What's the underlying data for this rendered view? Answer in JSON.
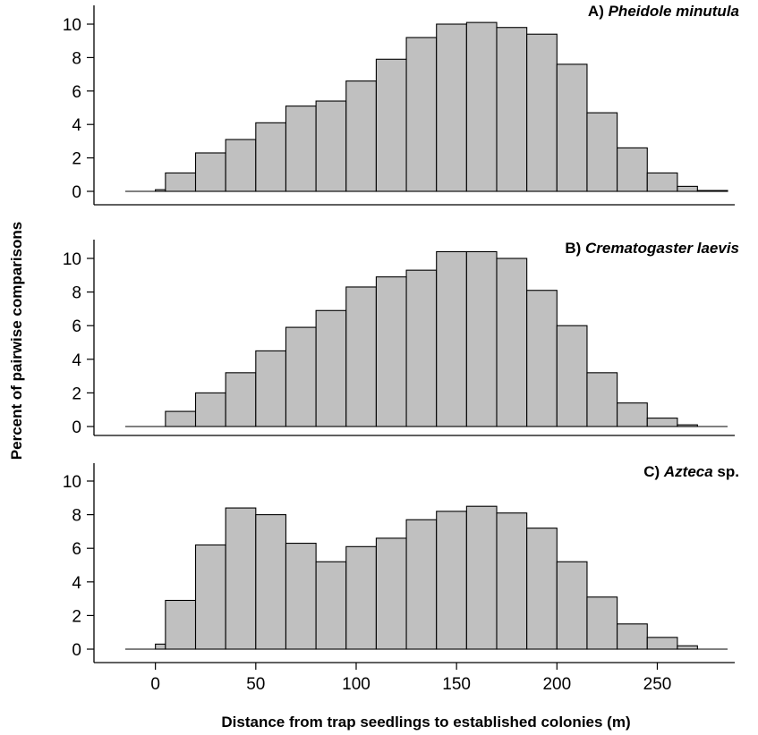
{
  "chart_data": {
    "type": "histogram",
    "xlabel": "Distance from trap seedlings to established colonies (m)",
    "ylabel": "Percent of pairwise comparisons",
    "bin_edges": [
      -15,
      0,
      5,
      20,
      35,
      50,
      65,
      80,
      95,
      110,
      125,
      140,
      155,
      170,
      185,
      200,
      215,
      230,
      245,
      260,
      270,
      285
    ],
    "xlim": [
      -15,
      285
    ],
    "xticks": [
      0,
      50,
      100,
      150,
      200,
      250
    ],
    "ylim": [
      0,
      10.5
    ],
    "yticks": [
      0,
      2,
      4,
      6,
      8,
      10
    ],
    "panels": [
      {
        "title_prefix": "A)",
        "title_italic": "Pheidole minutula",
        "title_suffix": "",
        "values": [
          0,
          0.1,
          1.1,
          2.3,
          3.1,
          4.1,
          5.1,
          5.4,
          6.6,
          7.9,
          9.2,
          10.0,
          10.1,
          9.8,
          9.4,
          7.6,
          4.7,
          2.6,
          1.1,
          0.3,
          0.05
        ]
      },
      {
        "title_prefix": "B)",
        "title_italic": "Crematogaster laevis",
        "title_suffix": "",
        "values": [
          0,
          0,
          0.9,
          2.0,
          3.2,
          4.5,
          5.9,
          6.9,
          8.3,
          8.9,
          9.3,
          10.4,
          10.4,
          10.0,
          8.1,
          6.0,
          3.2,
          1.4,
          0.5,
          0.1,
          0
        ]
      },
      {
        "title_prefix": "C)",
        "title_italic": "Azteca",
        "title_suffix": " sp.",
        "values": [
          0,
          0.3,
          2.9,
          6.2,
          8.4,
          8.0,
          6.3,
          5.2,
          6.1,
          6.6,
          7.7,
          8.2,
          8.5,
          8.1,
          7.2,
          5.2,
          3.1,
          1.5,
          0.7,
          0.2,
          0
        ]
      }
    ]
  }
}
